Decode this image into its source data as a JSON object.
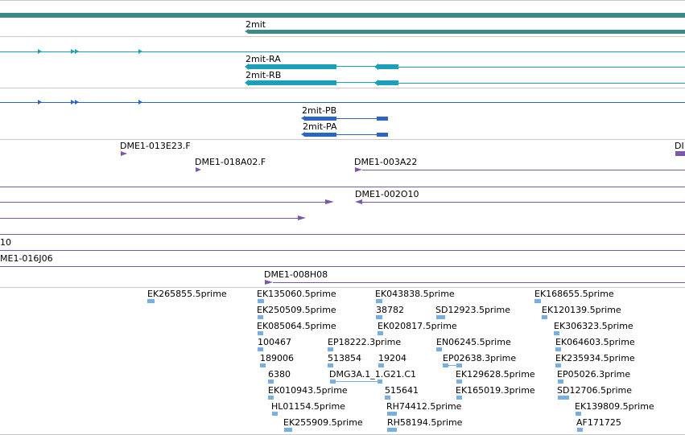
{
  "colors": {
    "gene": "#3a8a8a",
    "mrna": "#1aa0b8",
    "protein": "#2b66c4",
    "clone": "#7a5aa8",
    "est": "#78aee0",
    "separator": "#c8c8c8"
  },
  "tracks": {
    "gene": {
      "name": "2mit"
    },
    "mrna": {
      "names": [
        "2mit-RA",
        "2mit-RB"
      ]
    },
    "protein": {
      "names": [
        "2mit-PB",
        "2mit-PA"
      ]
    },
    "clones": {
      "labels": [
        "DME1-013E23.F",
        "DME1-018A02.F",
        "DME1-003A22",
        "DME1-002O10",
        "10",
        "ME1-016J06",
        "DME1-008H08",
        "DI"
      ]
    },
    "ests": {
      "labels": [
        "EK265855.5prime",
        "EK135060.5prime",
        "EK250509.5prime",
        "EK085064.5prime",
        "100467",
        "189006",
        "6380",
        "EK010943.5prime",
        "HL01154.5prime",
        "EK255909.5prime",
        "EP18222.3prime",
        "513854",
        "DMG3A.1_1.G21.C1",
        "EK043838.5prime",
        "38782",
        "EK020817.5prime",
        "19204",
        "515641",
        "RH74412.5prime",
        "RH58194.5prime",
        "SD12923.5prime",
        "EN06245.5prime",
        "EP02638.3prime",
        "EK129628.5prime",
        "EK165019.3prime",
        "EK168655.5prime",
        "EK120139.5prime",
        "EK306323.5prime",
        "EK064603.5prime",
        "EK235934.5prime",
        "EP05026.3prime",
        "SD12706.5prime",
        "EK139809.5prime",
        "AF171725"
      ]
    }
  }
}
